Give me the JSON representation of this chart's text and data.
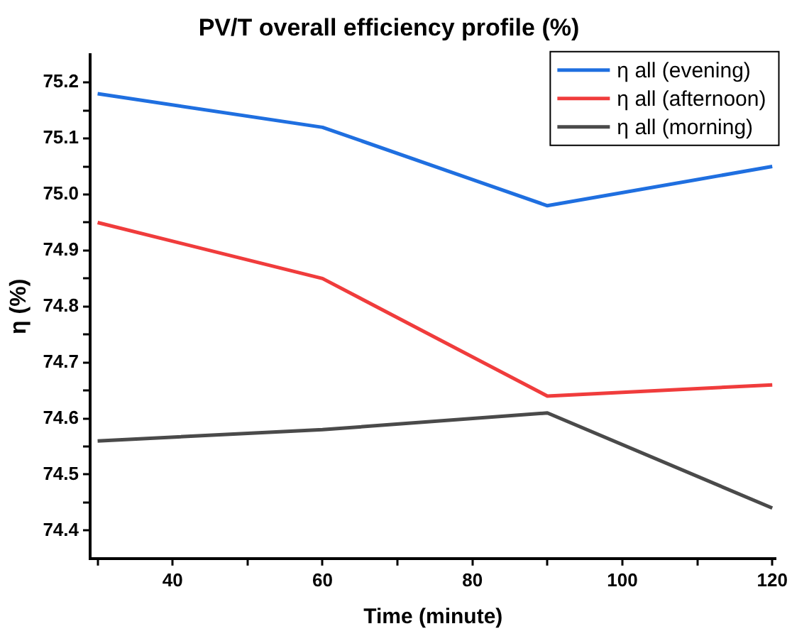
{
  "chart_data": {
    "type": "line",
    "title": "PV/T overall efficiency profile (%)",
    "xlabel": "Time (minute)",
    "ylabel": "η (%)",
    "x": [
      30,
      60,
      90,
      120
    ],
    "series": [
      {
        "name": "η all (evening)",
        "color": "#1f6fe0",
        "values": [
          75.18,
          75.12,
          74.98,
          75.05
        ]
      },
      {
        "name": "η all (afternoon)",
        "color": "#f03c3c",
        "values": [
          74.95,
          74.85,
          74.64,
          74.66
        ]
      },
      {
        "name": "η all (morning)",
        "color": "#4a4a4a",
        "values": [
          74.56,
          74.58,
          74.61,
          74.44
        ]
      }
    ],
    "xlim": [
      29,
      120.5
    ],
    "xticks": [
      {
        "value": 30,
        "label": null
      },
      40,
      {
        "value": 50,
        "label": null
      },
      60,
      {
        "value": 70,
        "label": null
      },
      80,
      {
        "value": 90,
        "label": null
      },
      100,
      {
        "value": 110,
        "label": null
      },
      120
    ],
    "ylim": [
      74.35,
      75.25
    ],
    "yticks": [
      74.4,
      {
        "value": 74.45,
        "label": null
      },
      74.5,
      {
        "value": 74.55,
        "label": null
      },
      74.6,
      {
        "value": 74.65,
        "label": null
      },
      74.7,
      {
        "value": 74.75,
        "label": null
      },
      74.8,
      {
        "value": 74.85,
        "label": null
      },
      74.9,
      {
        "value": 74.95,
        "label": null
      },
      {
        "value": 75,
        "label": "75.0"
      },
      {
        "value": 75.05,
        "label": null
      },
      75.1,
      {
        "value": 75.15,
        "label": null
      },
      75.2
    ],
    "grid": false,
    "legend": "top right",
    "marker": "none",
    "line_style": "solid"
  }
}
